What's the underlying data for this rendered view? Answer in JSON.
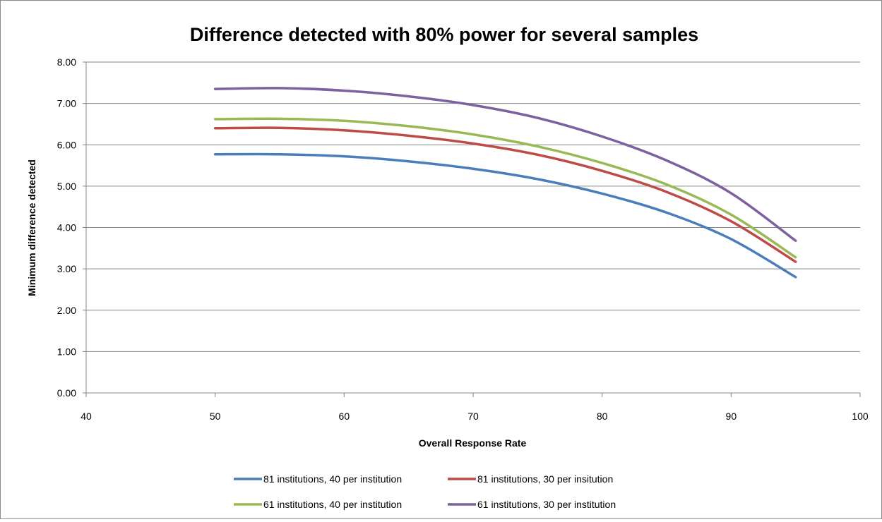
{
  "chart_data": {
    "type": "line",
    "title": "Difference detected with 80% power for several samples",
    "xlabel": "Overall Response Rate",
    "ylabel": "Minimum difference detected",
    "xlim": [
      40,
      100
    ],
    "ylim": [
      0,
      8
    ],
    "x_ticks": [
      40,
      50,
      60,
      70,
      80,
      90,
      100
    ],
    "y_ticks": [
      "0.00",
      "1.00",
      "2.00",
      "3.00",
      "4.00",
      "5.00",
      "6.00",
      "7.00",
      "8.00"
    ],
    "grid": "horizontal",
    "legend_position": "bottom",
    "x": [
      50,
      55,
      60,
      65,
      70,
      75,
      80,
      85,
      90,
      95
    ],
    "series": [
      {
        "name": "81 institutions,  40 per institution",
        "color": "#4a7ebb",
        "values": [
          5.77,
          5.77,
          5.72,
          5.6,
          5.42,
          5.17,
          4.82,
          4.36,
          3.72,
          2.8
        ]
      },
      {
        "name": "81 institutions,  30 per insitution",
        "color": "#be4b48",
        "values": [
          6.4,
          6.41,
          6.35,
          6.22,
          6.03,
          5.76,
          5.37,
          4.86,
          4.15,
          3.17
        ]
      },
      {
        "name": "61 institutions, 40 per institution",
        "color": "#98b954",
        "values": [
          6.62,
          6.63,
          6.58,
          6.45,
          6.25,
          5.96,
          5.56,
          5.04,
          4.31,
          3.28
        ]
      },
      {
        "name": "61 institutions, 30 per institution",
        "color": "#7d60a0",
        "values": [
          7.35,
          7.37,
          7.31,
          7.17,
          6.96,
          6.65,
          6.2,
          5.62,
          4.83,
          3.68
        ]
      }
    ]
  }
}
